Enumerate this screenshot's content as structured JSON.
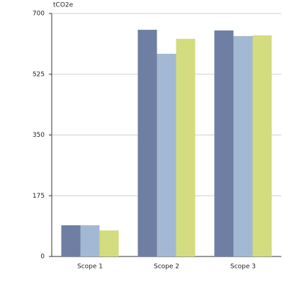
{
  "chart_data": {
    "type": "bar",
    "y_label": "tCO2e",
    "categories": [
      "Scope 1",
      "Scope 2",
      "Scope 3"
    ],
    "series": [
      {
        "color": "#6f7ea3",
        "values": [
          90,
          653,
          651
        ]
      },
      {
        "color": "#a3b9d3",
        "values": [
          90,
          584,
          635
        ]
      },
      {
        "color": "#d3dc7e",
        "values": [
          75,
          627,
          637
        ]
      }
    ],
    "ylim": [
      0,
      700
    ],
    "yticks": [
      0,
      175,
      350,
      525,
      700
    ],
    "grid": true
  }
}
